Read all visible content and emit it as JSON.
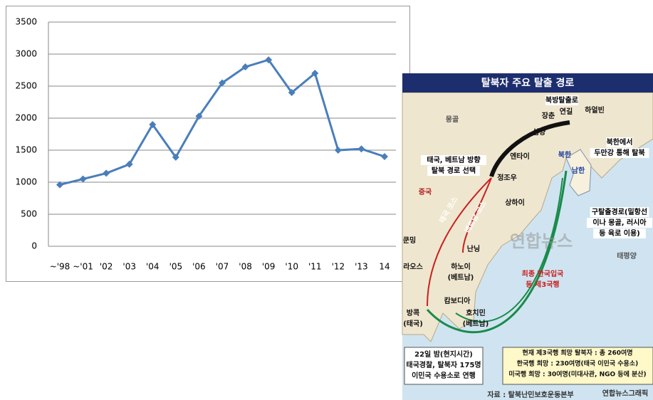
{
  "chart_data": {
    "type": "line",
    "categories": [
      "~'98",
      "~'01",
      "'02",
      "'03",
      "'04",
      "'05",
      "'06",
      "'07",
      "'08",
      "'09",
      "'10",
      "'11",
      "'12",
      "'13",
      "14"
    ],
    "series": [
      {
        "color": "#4a7ebb",
        "values": [
          960,
          1050,
          1140,
          1280,
          1900,
          1390,
          2030,
          2550,
          2800,
          2910,
          2400,
          2700,
          1500,
          1520,
          1400
        ]
      }
    ],
    "ylim": [
      0,
      3500
    ],
    "yticks": [
      0,
      500,
      1000,
      1500,
      2000,
      2500,
      3000,
      3500
    ],
    "grid": true
  },
  "map": {
    "title": "탈북자 주요 탈출 경로",
    "labels": [
      [
        "북방탈출로"
      ],
      [
        "장춘"
      ],
      [
        "연길"
      ],
      [
        "하얼빈"
      ],
      [
        "몽골"
      ],
      [
        "심양"
      ],
      [
        "북한에서",
        "두만강 통해 탈북"
      ],
      [
        "엔타이"
      ],
      [
        "북한"
      ],
      [
        "남한"
      ],
      [
        "태국, 베트남 방향",
        "탈북 경로 선택"
      ],
      [
        "정조우"
      ],
      [
        "중국"
      ],
      [
        "상하이"
      ],
      [
        "구탈출경로(밀항선",
        "이나 몽골, 러시아",
        "등 육로 이용)"
      ],
      [
        "태국 코스"
      ],
      [
        "베트남 코스"
      ],
      [
        "쿤밍"
      ],
      [
        "난닝"
      ],
      [
        "라오스"
      ],
      [
        "하노이",
        "(베트남)"
      ],
      [
        "최종 한국입국",
        "등 제3국행"
      ],
      [
        "태평양"
      ],
      [
        "캄보디아"
      ],
      [
        "호치민",
        "(베트남)"
      ],
      [
        "방콕",
        "(태국)"
      ],
      [
        "22일 밤(현지시간)",
        "태국경찰, 탈북자 175명",
        "이민국 수용소로 연행"
      ],
      [
        "현재 제3국행 희망 탈북자 : 총 260여명",
        "한국행 희망 : 230여명(태국 이민국 수용소)",
        "미국행 희망 : 30여명(미대사관, NGO 등에 분산)"
      ],
      [
        "자료 : 탈북난민보호운동본부"
      ],
      [
        "연합뉴스그래픽"
      ],
      [
        "연합뉴스"
      ]
    ]
  }
}
